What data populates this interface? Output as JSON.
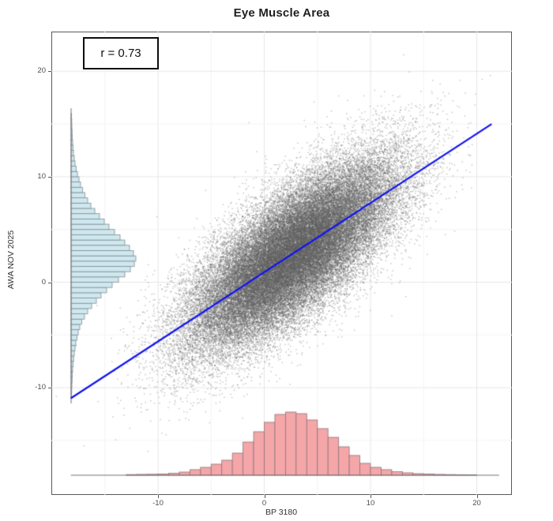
{
  "title": "Eye Muscle Area",
  "annotation": {
    "correlation_label": "r = 0.73"
  },
  "axes": {
    "x_label": "BP 3180",
    "y_label": "AWA NOV 2025",
    "x_ticks": [
      -10,
      0,
      10,
      20
    ],
    "y_ticks": [
      20,
      10,
      0,
      -10
    ]
  },
  "colors": {
    "scatter_point": "rgba(95,95,95,0.35)",
    "regression_line": "#1013ee",
    "hist_x_fill": "#f4a6a9",
    "hist_x_stroke": "#8f7577",
    "hist_y_fill": "#cfe7ee",
    "hist_y_stroke": "#808e93",
    "grid_major": "#e6e6e6",
    "grid_minor": "#f4f4f4",
    "panel_border": "#595959",
    "baseline": "#737373",
    "axis_text": "#4d4d4d"
  },
  "chart_data": {
    "type": "scatter",
    "title": "Eye Muscle Area",
    "xlabel": "BP 3180",
    "ylabel": "AWA NOV 2025",
    "xlim": [
      -20,
      23.3
    ],
    "ylim": [
      -20.2,
      23.7
    ],
    "grid": "major+minor every 5 units",
    "correlation_r": 0.73,
    "annotation_text": "r = 0.73",
    "regression_line": {
      "x1": -18.2,
      "y1": -11.0,
      "x2": 21.4,
      "y2": 15.0
    },
    "scatter_cloud": {
      "description": "dense bivariate-normal cloud of small gray points",
      "n_points": 55000,
      "mean_x": 2.6,
      "mean_y": 2.7,
      "sd_x": 4.8,
      "sd_y": 4.4,
      "rho": 0.73
    },
    "marginal_hist_x": {
      "orientation": "bottom",
      "bin_width": 1,
      "first_bin_left_edge": -13,
      "heights_rel": [
        0.01,
        0.013,
        0.015,
        0.019,
        0.031,
        0.05,
        0.088,
        0.125,
        0.175,
        0.238,
        0.35,
        0.525,
        0.688,
        0.838,
        0.963,
        1.0,
        0.975,
        0.875,
        0.738,
        0.6,
        0.45,
        0.313,
        0.188,
        0.125,
        0.088,
        0.056,
        0.038,
        0.025,
        0.019,
        0.013,
        0.01,
        0.008,
        0.006
      ]
    },
    "marginal_hist_y": {
      "orientation": "left",
      "bin_width": 0.5,
      "first_bin_bottom_edge": -11,
      "heights_rel": [
        0.007,
        0.01,
        0.012,
        0.015,
        0.02,
        0.024,
        0.032,
        0.039,
        0.049,
        0.061,
        0.073,
        0.091,
        0.11,
        0.134,
        0.165,
        0.207,
        0.256,
        0.317,
        0.39,
        0.463,
        0.549,
        0.634,
        0.732,
        0.829,
        0.915,
        0.976,
        1.0,
        0.963,
        0.902,
        0.829,
        0.756,
        0.671,
        0.585,
        0.512,
        0.439,
        0.366,
        0.305,
        0.256,
        0.213,
        0.177,
        0.146,
        0.122,
        0.098,
        0.079,
        0.061,
        0.049,
        0.037,
        0.03,
        0.024,
        0.018,
        0.015,
        0.012,
        0.01,
        0.007
      ]
    }
  }
}
